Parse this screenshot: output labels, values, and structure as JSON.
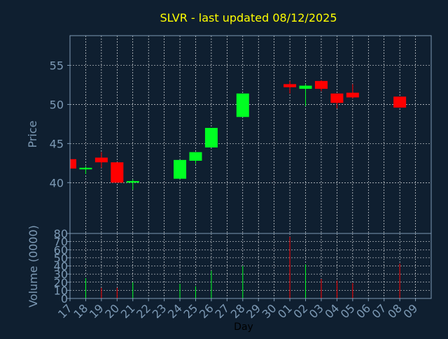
{
  "chart_data": {
    "type": "candlestick",
    "title": "SLVR - last updated 08/12/2025",
    "xlabel": "Day",
    "price_panel": {
      "ylabel": "Price",
      "yticks": [
        40,
        45,
        50,
        55
      ],
      "ylim": [
        33.5,
        58.8
      ]
    },
    "volume_panel": {
      "ylabel": "Volume (0000)",
      "yticks": [
        0,
        10,
        20,
        30,
        40,
        50,
        60,
        70,
        80
      ],
      "ylim": [
        0,
        80
      ]
    },
    "grid": true,
    "colors": {
      "up": "#00ff22",
      "down": "#ff0000",
      "background": "#0f1f30",
      "axis": "#7d9ab5",
      "title": "#ffff00",
      "grid": "#ffffff"
    },
    "xticks": [
      "17",
      "18",
      "19",
      "20",
      "21",
      "22",
      "23",
      "24",
      "25",
      "26",
      "27",
      "28",
      "29",
      "30",
      "01",
      "02",
      "03",
      "04",
      "05",
      "06",
      "07",
      "08",
      "09"
    ],
    "candles": [
      {
        "day": "17",
        "open": 43.0,
        "high": 43.0,
        "low": 41.8,
        "close": 41.8,
        "volume": 0
      },
      {
        "day": "18",
        "open": 41.7,
        "high": 42.1,
        "low": 41.1,
        "close": 41.9,
        "volume": 25
      },
      {
        "day": "19",
        "open": 43.2,
        "high": 43.9,
        "low": 41.9,
        "close": 42.6,
        "volume": 13
      },
      {
        "day": "20",
        "open": 42.6,
        "high": 42.6,
        "low": 40.0,
        "close": 40.0,
        "volume": 13
      },
      {
        "day": "21",
        "open": 40.0,
        "high": 40.4,
        "low": 39.1,
        "close": 40.2,
        "volume": 20
      },
      {
        "day": "24",
        "open": 40.5,
        "high": 42.9,
        "low": 40.5,
        "close": 42.9,
        "volume": 18
      },
      {
        "day": "25",
        "open": 42.8,
        "high": 43.9,
        "low": 42.4,
        "close": 43.9,
        "volume": 15
      },
      {
        "day": "26",
        "open": 44.5,
        "high": 47.0,
        "low": 44.5,
        "close": 47.0,
        "volume": 34
      },
      {
        "day": "28",
        "open": 48.4,
        "high": 51.4,
        "low": 48.4,
        "close": 51.4,
        "volume": 40
      },
      {
        "day": "01",
        "open": 52.6,
        "high": 53.0,
        "low": 51.4,
        "close": 52.2,
        "volume": 76
      },
      {
        "day": "02",
        "open": 52.0,
        "high": 52.6,
        "low": 49.8,
        "close": 52.4,
        "volume": 42
      },
      {
        "day": "03",
        "open": 53.0,
        "high": 53.1,
        "low": 51.7,
        "close": 52.0,
        "volume": 24
      },
      {
        "day": "04",
        "open": 51.4,
        "high": 51.4,
        "low": 49.5,
        "close": 50.2,
        "volume": 22
      },
      {
        "day": "05",
        "open": 51.5,
        "high": 52.6,
        "low": 50.8,
        "close": 50.9,
        "volume": 19
      },
      {
        "day": "08",
        "open": 51.0,
        "high": 51.0,
        "low": 49.6,
        "close": 49.6,
        "volume": 43
      }
    ]
  }
}
